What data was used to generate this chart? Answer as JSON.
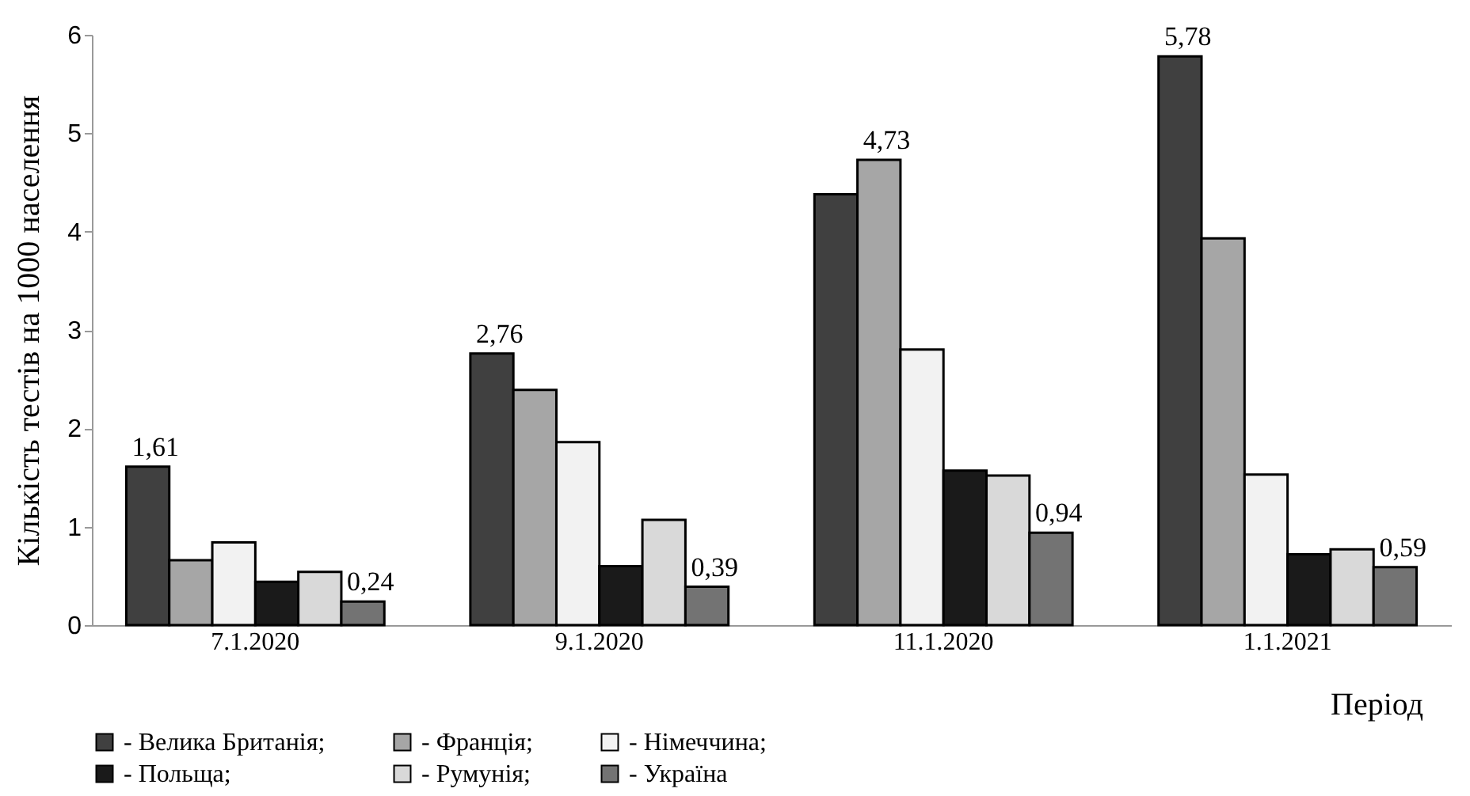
{
  "chart_data": {
    "type": "bar",
    "xlabel": "Період",
    "ylabel": "Кількість тестів на 1000 населення",
    "categories": [
      "7.1.2020",
      "9.1.2020",
      "11.1.2020",
      "1.1.2021"
    ],
    "series": [
      {
        "name": "- Велика Британія;",
        "color": "#404040",
        "values": [
          1.61,
          2.76,
          4.38,
          5.78
        ],
        "value_labels": [
          "1,61",
          "2,76",
          null,
          "5,78"
        ]
      },
      {
        "name": "- Франція;",
        "color": "#a6a6a6",
        "values": [
          0.66,
          2.39,
          4.73,
          3.93
        ],
        "value_labels": [
          null,
          null,
          "4,73",
          null
        ]
      },
      {
        "name": "- Німеччина;",
        "color": "#f2f2f2",
        "values": [
          0.84,
          1.86,
          2.8,
          1.53
        ]
      },
      {
        "name": "- Польща;",
        "color": "#1a1a1a",
        "values": [
          0.44,
          0.6,
          1.57,
          0.72
        ]
      },
      {
        "name": "- Румунія;",
        "color": "#d9d9d9",
        "values": [
          0.54,
          1.07,
          1.52,
          0.77
        ]
      },
      {
        "name": "- Україна",
        "color": "#737373",
        "values": [
          0.24,
          0.39,
          0.94,
          0.59
        ],
        "value_labels": [
          "0,24",
          "0,39",
          "0,94",
          "0,59"
        ]
      }
    ],
    "ylim": [
      0,
      6
    ],
    "yticks": [
      0,
      1,
      2,
      3,
      4,
      5,
      6
    ],
    "grid": false,
    "legend": "bottom"
  }
}
